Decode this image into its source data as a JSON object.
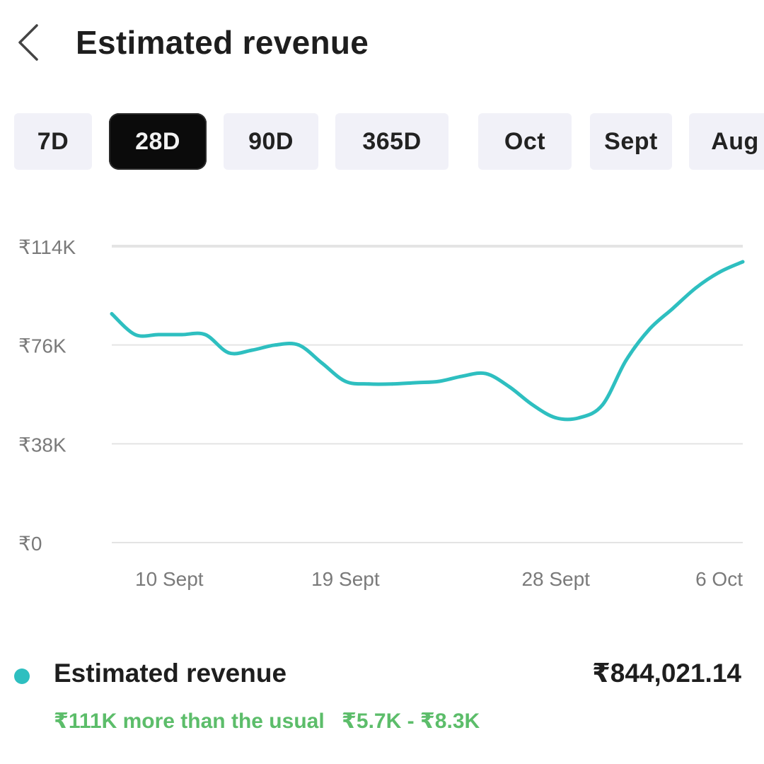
{
  "header": {
    "title": "Estimated revenue",
    "back_icon": "chevron-left-icon"
  },
  "ranges": [
    {
      "label": "7D",
      "active": false
    },
    {
      "label": "28D",
      "active": true
    },
    {
      "label": "90D",
      "active": false
    },
    {
      "label": "365D",
      "active": false
    },
    {
      "label": "Oct",
      "active": false
    },
    {
      "label": "Sept",
      "active": false
    },
    {
      "label": "Aug",
      "active": false
    }
  ],
  "chart_data": {
    "type": "line",
    "title": "",
    "xlabel": "",
    "ylabel": "",
    "x": [
      "9 Sept",
      "10 Sept",
      "11 Sept",
      "12 Sept",
      "13 Sept",
      "14 Sept",
      "15 Sept",
      "16 Sept",
      "17 Sept",
      "18 Sept",
      "19 Sept",
      "20 Sept",
      "21 Sept",
      "22 Sept",
      "23 Sept",
      "24 Sept",
      "25 Sept",
      "26 Sept",
      "27 Sept",
      "28 Sept",
      "29 Sept",
      "30 Sept",
      "1 Oct",
      "2 Oct",
      "3 Oct",
      "4 Oct",
      "5 Oct",
      "6 Oct"
    ],
    "series": [
      {
        "values": [
          88000,
          80000,
          80000,
          80000,
          80000,
          73000,
          74000,
          76000,
          76000,
          69000,
          62000,
          61000,
          61000,
          61500,
          62000,
          64000,
          65000,
          60000,
          53000,
          48000,
          48000,
          53000,
          70000,
          82000,
          90000,
          98000,
          104000,
          108000
        ],
        "color": "#2ebfc0"
      }
    ],
    "y_ticks": [
      "₹0",
      "₹38K",
      "₹76K",
      "₹114K"
    ],
    "x_tick_labels": [
      "10 Sept",
      "19 Sept",
      "28 Sept",
      "6 Oct"
    ],
    "ylim": [
      0,
      114000
    ],
    "grid": true,
    "line_color": "#2ebfc0"
  },
  "summary": {
    "label": "Estimated revenue",
    "value": "₹844,021.14",
    "note_main": "₹111K more than the usual",
    "note_range": "₹5.7K - ₹8.3K",
    "note_color": "#5cbd6a",
    "dot_color": "#2ebfc0"
  }
}
